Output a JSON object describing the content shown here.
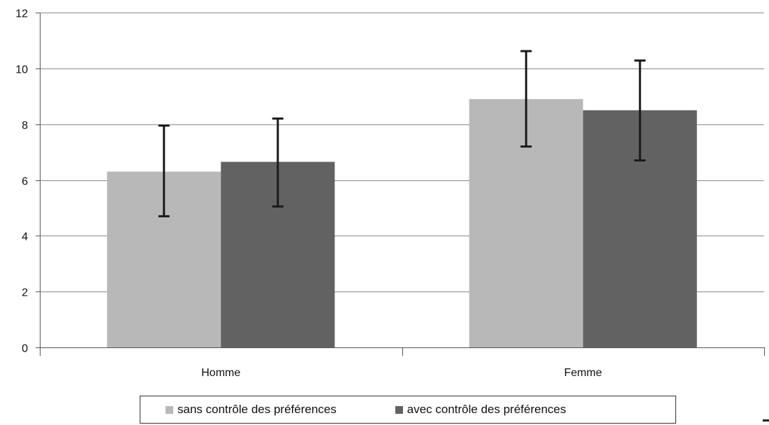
{
  "chart_data": {
    "type": "bar",
    "categories": [
      "Homme",
      "Femme"
    ],
    "series": [
      {
        "name": "sans contrôle des préférences",
        "color": "#b8b8b8",
        "values": [
          6.3,
          8.9
        ],
        "error_low": [
          4.7,
          7.2
        ],
        "error_high": [
          7.95,
          10.62
        ]
      },
      {
        "name": "avec contrôle des préférences",
        "color": "#626262",
        "values": [
          6.65,
          8.5
        ],
        "error_low": [
          5.05,
          6.7
        ],
        "error_high": [
          8.2,
          10.28
        ]
      }
    ],
    "ylim": [
      0,
      12
    ],
    "yticks": [
      "0",
      "2",
      "4",
      "6",
      "8",
      "10",
      "12"
    ],
    "grid": true,
    "legend_position": "bottom"
  }
}
